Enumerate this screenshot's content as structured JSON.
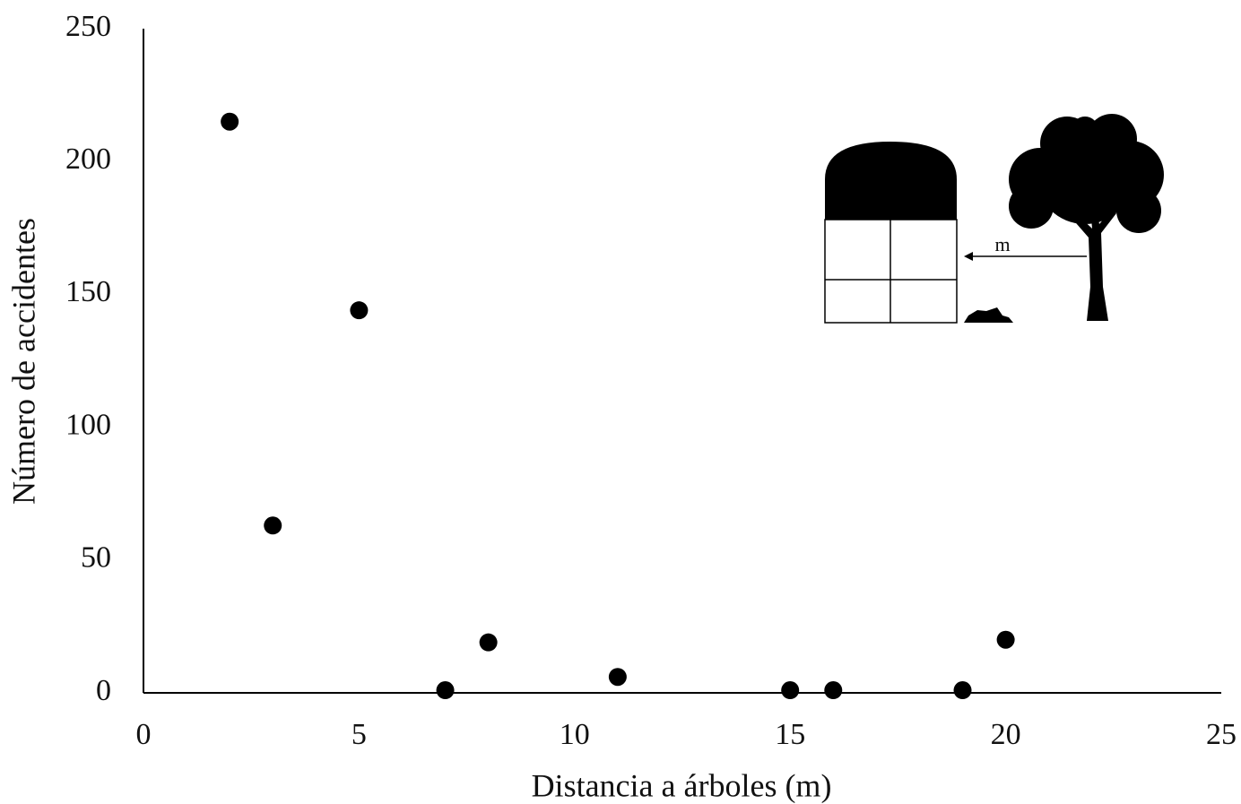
{
  "chart_data": {
    "type": "scatter",
    "x_label": "Distancia a árboles (m)",
    "y_label": "Número de accidentes",
    "annotation": "m",
    "x": [
      2,
      3,
      5,
      7,
      8,
      11,
      15,
      16,
      19,
      20
    ],
    "series": [
      {
        "color": "#000000",
        "values": [
          215,
          63,
          144,
          1,
          19,
          6,
          1,
          1,
          1,
          20
        ]
      }
    ],
    "xlim": [
      0,
      25
    ],
    "xticks": [
      0,
      5,
      10,
      15,
      20,
      25
    ],
    "ylim": [
      0,
      250
    ],
    "yticks": [
      0,
      50,
      100,
      150,
      200,
      250
    ],
    "grid": false
  }
}
